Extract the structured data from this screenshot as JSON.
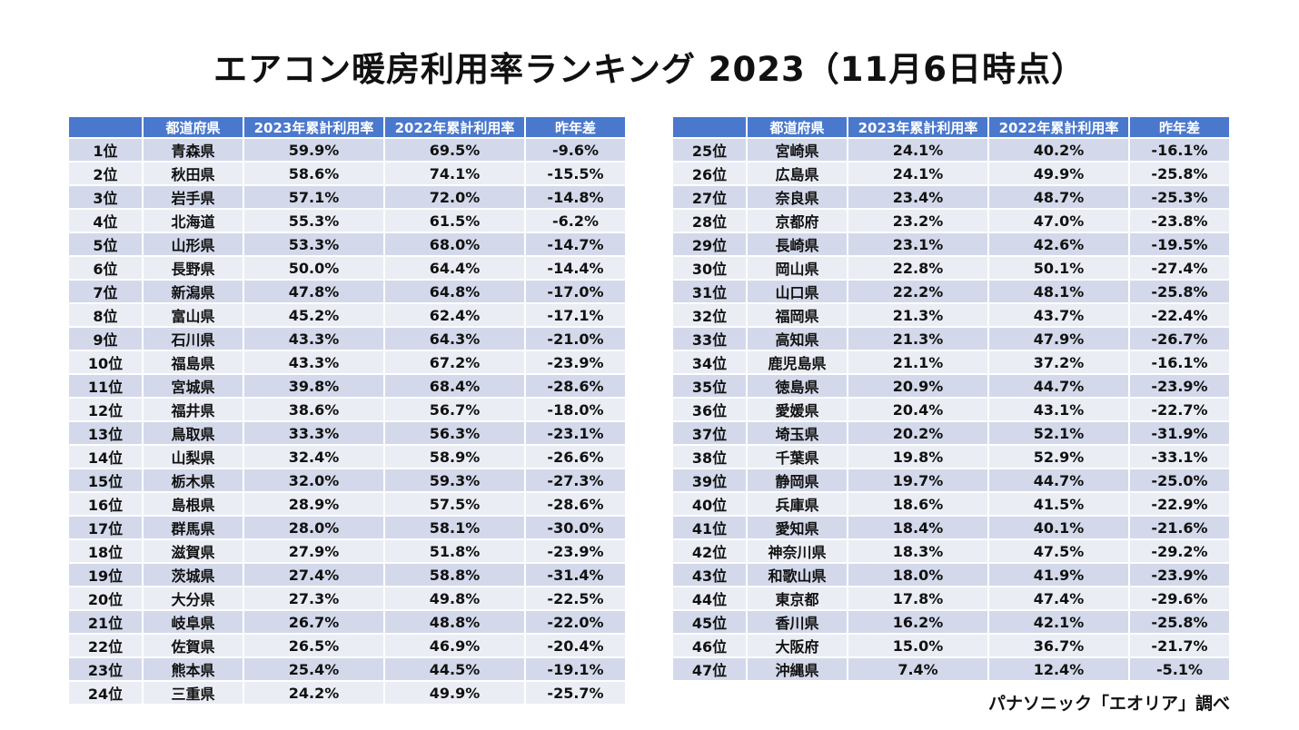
{
  "title": "エアコン暖房利用率ランキング 2023（11月6日時点）",
  "headers": [
    "",
    "都道府県",
    "2023年累計利用率",
    "2022年累計利用率",
    "昨年差"
  ],
  "left_rows": [
    [
      "1位",
      "青森県",
      "59.9%",
      "69.5%",
      "-9.6%"
    ],
    [
      "2位",
      "秋田県",
      "58.6%",
      "74.1%",
      "-15.5%"
    ],
    [
      "3位",
      "岩手県",
      "57.1%",
      "72.0%",
      "-14.8%"
    ],
    [
      "4位",
      "北海道",
      "55.3%",
      "61.5%",
      "-6.2%"
    ],
    [
      "5位",
      "山形県",
      "53.3%",
      "68.0%",
      "-14.7%"
    ],
    [
      "6位",
      "長野県",
      "50.0%",
      "64.4%",
      "-14.4%"
    ],
    [
      "7位",
      "新潟県",
      "47.8%",
      "64.8%",
      "-17.0%"
    ],
    [
      "8位",
      "富山県",
      "45.2%",
      "62.4%",
      "-17.1%"
    ],
    [
      "9位",
      "石川県",
      "43.3%",
      "64.3%",
      "-21.0%"
    ],
    [
      "10位",
      "福島県",
      "43.3%",
      "67.2%",
      "-23.9%"
    ],
    [
      "11位",
      "宮城県",
      "39.8%",
      "68.4%",
      "-28.6%"
    ],
    [
      "12位",
      "福井県",
      "38.6%",
      "56.7%",
      "-18.0%"
    ],
    [
      "13位",
      "鳥取県",
      "33.3%",
      "56.3%",
      "-23.1%"
    ],
    [
      "14位",
      "山梨県",
      "32.4%",
      "58.9%",
      "-26.6%"
    ],
    [
      "15位",
      "栃木県",
      "32.0%",
      "59.3%",
      "-27.3%"
    ],
    [
      "16位",
      "島根県",
      "28.9%",
      "57.5%",
      "-28.6%"
    ],
    [
      "17位",
      "群馬県",
      "28.0%",
      "58.1%",
      "-30.0%"
    ],
    [
      "18位",
      "滋賀県",
      "27.9%",
      "51.8%",
      "-23.9%"
    ],
    [
      "19位",
      "茨城県",
      "27.4%",
      "58.8%",
      "-31.4%"
    ],
    [
      "20位",
      "大分県",
      "27.3%",
      "49.8%",
      "-22.5%"
    ],
    [
      "21位",
      "岐阜県",
      "26.7%",
      "48.8%",
      "-22.0%"
    ],
    [
      "22位",
      "佐賀県",
      "26.5%",
      "46.9%",
      "-20.4%"
    ],
    [
      "23位",
      "熊本県",
      "25.4%",
      "44.5%",
      "-19.1%"
    ],
    [
      "24位",
      "三重県",
      "24.2%",
      "49.9%",
      "-25.7%"
    ]
  ],
  "right_rows": [
    [
      "25位",
      "宮崎県",
      "24.1%",
      "40.2%",
      "-16.1%"
    ],
    [
      "26位",
      "広島県",
      "24.1%",
      "49.9%",
      "-25.8%"
    ],
    [
      "27位",
      "奈良県",
      "23.4%",
      "48.7%",
      "-25.3%"
    ],
    [
      "28位",
      "京都府",
      "23.2%",
      "47.0%",
      "-23.8%"
    ],
    [
      "29位",
      "長崎県",
      "23.1%",
      "42.6%",
      "-19.5%"
    ],
    [
      "30位",
      "岡山県",
      "22.8%",
      "50.1%",
      "-27.4%"
    ],
    [
      "31位",
      "山口県",
      "22.2%",
      "48.1%",
      "-25.8%"
    ],
    [
      "32位",
      "福岡県",
      "21.3%",
      "43.7%",
      "-22.4%"
    ],
    [
      "33位",
      "高知県",
      "21.3%",
      "47.9%",
      "-26.7%"
    ],
    [
      "34位",
      "鹿児島県",
      "21.1%",
      "37.2%",
      "-16.1%"
    ],
    [
      "35位",
      "徳島県",
      "20.9%",
      "44.7%",
      "-23.9%"
    ],
    [
      "36位",
      "愛媛県",
      "20.4%",
      "43.1%",
      "-22.7%"
    ],
    [
      "37位",
      "埼玉県",
      "20.2%",
      "52.1%",
      "-31.9%"
    ],
    [
      "38位",
      "千葉県",
      "19.8%",
      "52.9%",
      "-33.1%"
    ],
    [
      "39位",
      "静岡県",
      "19.7%",
      "44.7%",
      "-25.0%"
    ],
    [
      "40位",
      "兵庫県",
      "18.6%",
      "41.5%",
      "-22.9%"
    ],
    [
      "41位",
      "愛知県",
      "18.4%",
      "40.1%",
      "-21.6%"
    ],
    [
      "42位",
      "神奈川県",
      "18.3%",
      "47.5%",
      "-29.2%"
    ],
    [
      "43位",
      "和歌山県",
      "18.0%",
      "41.9%",
      "-23.9%"
    ],
    [
      "44位",
      "東京都",
      "17.8%",
      "47.4%",
      "-29.6%"
    ],
    [
      "45位",
      "香川県",
      "16.2%",
      "42.1%",
      "-25.8%"
    ],
    [
      "46位",
      "大阪府",
      "15.0%",
      "36.7%",
      "-21.7%"
    ],
    [
      "47位",
      "沖縄県",
      "7.4%",
      "12.4%",
      "-5.1%"
    ]
  ],
  "source": "パナソニック「エオリア」調べ"
}
